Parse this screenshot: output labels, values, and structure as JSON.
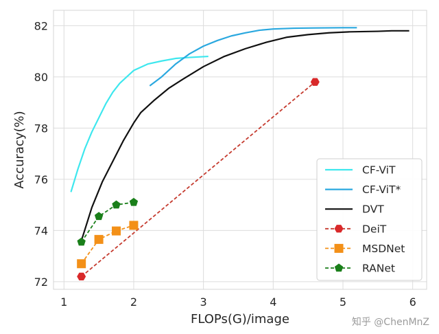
{
  "watermark": "知乎 @ChenMnZ",
  "chart_data": {
    "type": "line",
    "xlabel": "FLOPs(G)/image",
    "ylabel": "Accuracy(%)",
    "xlim": [
      0.85,
      6.2
    ],
    "ylim": [
      71.7,
      82.6
    ],
    "xticks": [
      1,
      2,
      3,
      4,
      5,
      6
    ],
    "yticks": [
      72,
      74,
      76,
      78,
      80,
      82
    ],
    "grid": true,
    "legend_position": "bottom-right",
    "series": [
      {
        "name": "CF-ViT",
        "color": "#3de7ee",
        "style": "solid",
        "marker": "none",
        "points": [
          [
            1.1,
            75.5
          ],
          [
            1.2,
            76.4
          ],
          [
            1.3,
            77.2
          ],
          [
            1.4,
            77.85
          ],
          [
            1.5,
            78.4
          ],
          [
            1.6,
            78.95
          ],
          [
            1.7,
            79.4
          ],
          [
            1.8,
            79.75
          ],
          [
            1.9,
            80.0
          ],
          [
            2.0,
            80.25
          ],
          [
            2.2,
            80.5
          ],
          [
            2.4,
            80.62
          ],
          [
            2.6,
            80.72
          ],
          [
            2.8,
            80.76
          ],
          [
            3.07,
            80.8
          ]
        ]
      },
      {
        "name": "CF-ViT*",
        "color": "#2aa8df",
        "style": "solid",
        "marker": "none",
        "points": [
          [
            2.23,
            79.65
          ],
          [
            2.4,
            80.0
          ],
          [
            2.6,
            80.5
          ],
          [
            2.8,
            80.9
          ],
          [
            3.0,
            81.2
          ],
          [
            3.2,
            81.42
          ],
          [
            3.4,
            81.6
          ],
          [
            3.6,
            81.72
          ],
          [
            3.8,
            81.82
          ],
          [
            4.0,
            81.87
          ],
          [
            4.3,
            81.9
          ],
          [
            4.6,
            81.91
          ],
          [
            5.0,
            81.92
          ],
          [
            5.2,
            81.92
          ]
        ]
      },
      {
        "name": "DVT",
        "color": "#111111",
        "style": "solid",
        "marker": "none",
        "points": [
          [
            1.25,
            73.6
          ],
          [
            1.4,
            74.9
          ],
          [
            1.55,
            75.9
          ],
          [
            1.7,
            76.7
          ],
          [
            1.85,
            77.5
          ],
          [
            2.0,
            78.2
          ],
          [
            2.1,
            78.6
          ],
          [
            2.3,
            79.1
          ],
          [
            2.5,
            79.55
          ],
          [
            2.7,
            79.9
          ],
          [
            3.0,
            80.4
          ],
          [
            3.3,
            80.8
          ],
          [
            3.6,
            81.1
          ],
          [
            3.9,
            81.35
          ],
          [
            4.2,
            81.55
          ],
          [
            4.5,
            81.65
          ],
          [
            4.8,
            81.72
          ],
          [
            5.1,
            81.76
          ],
          [
            5.5,
            81.78
          ],
          [
            5.7,
            81.8
          ],
          [
            5.95,
            81.8
          ]
        ]
      },
      {
        "name": "DeiT",
        "color": "#d9292a",
        "line_color": "#c53a2e",
        "style": "dashed",
        "marker": "hexagon",
        "points": [
          [
            1.25,
            72.2
          ],
          [
            4.6,
            79.8
          ]
        ]
      },
      {
        "name": "MSDNet",
        "color": "#f39018",
        "style": "dashed",
        "marker": "square",
        "points": [
          [
            1.25,
            72.7
          ],
          [
            1.5,
            73.65
          ],
          [
            1.75,
            73.98
          ],
          [
            2.0,
            74.2
          ]
        ]
      },
      {
        "name": "RANet",
        "color": "#1a7f1a",
        "style": "dashed",
        "marker": "pentagon",
        "points": [
          [
            1.25,
            73.55
          ],
          [
            1.5,
            74.55
          ],
          [
            1.75,
            75.0
          ],
          [
            2.0,
            75.1
          ]
        ]
      }
    ]
  }
}
